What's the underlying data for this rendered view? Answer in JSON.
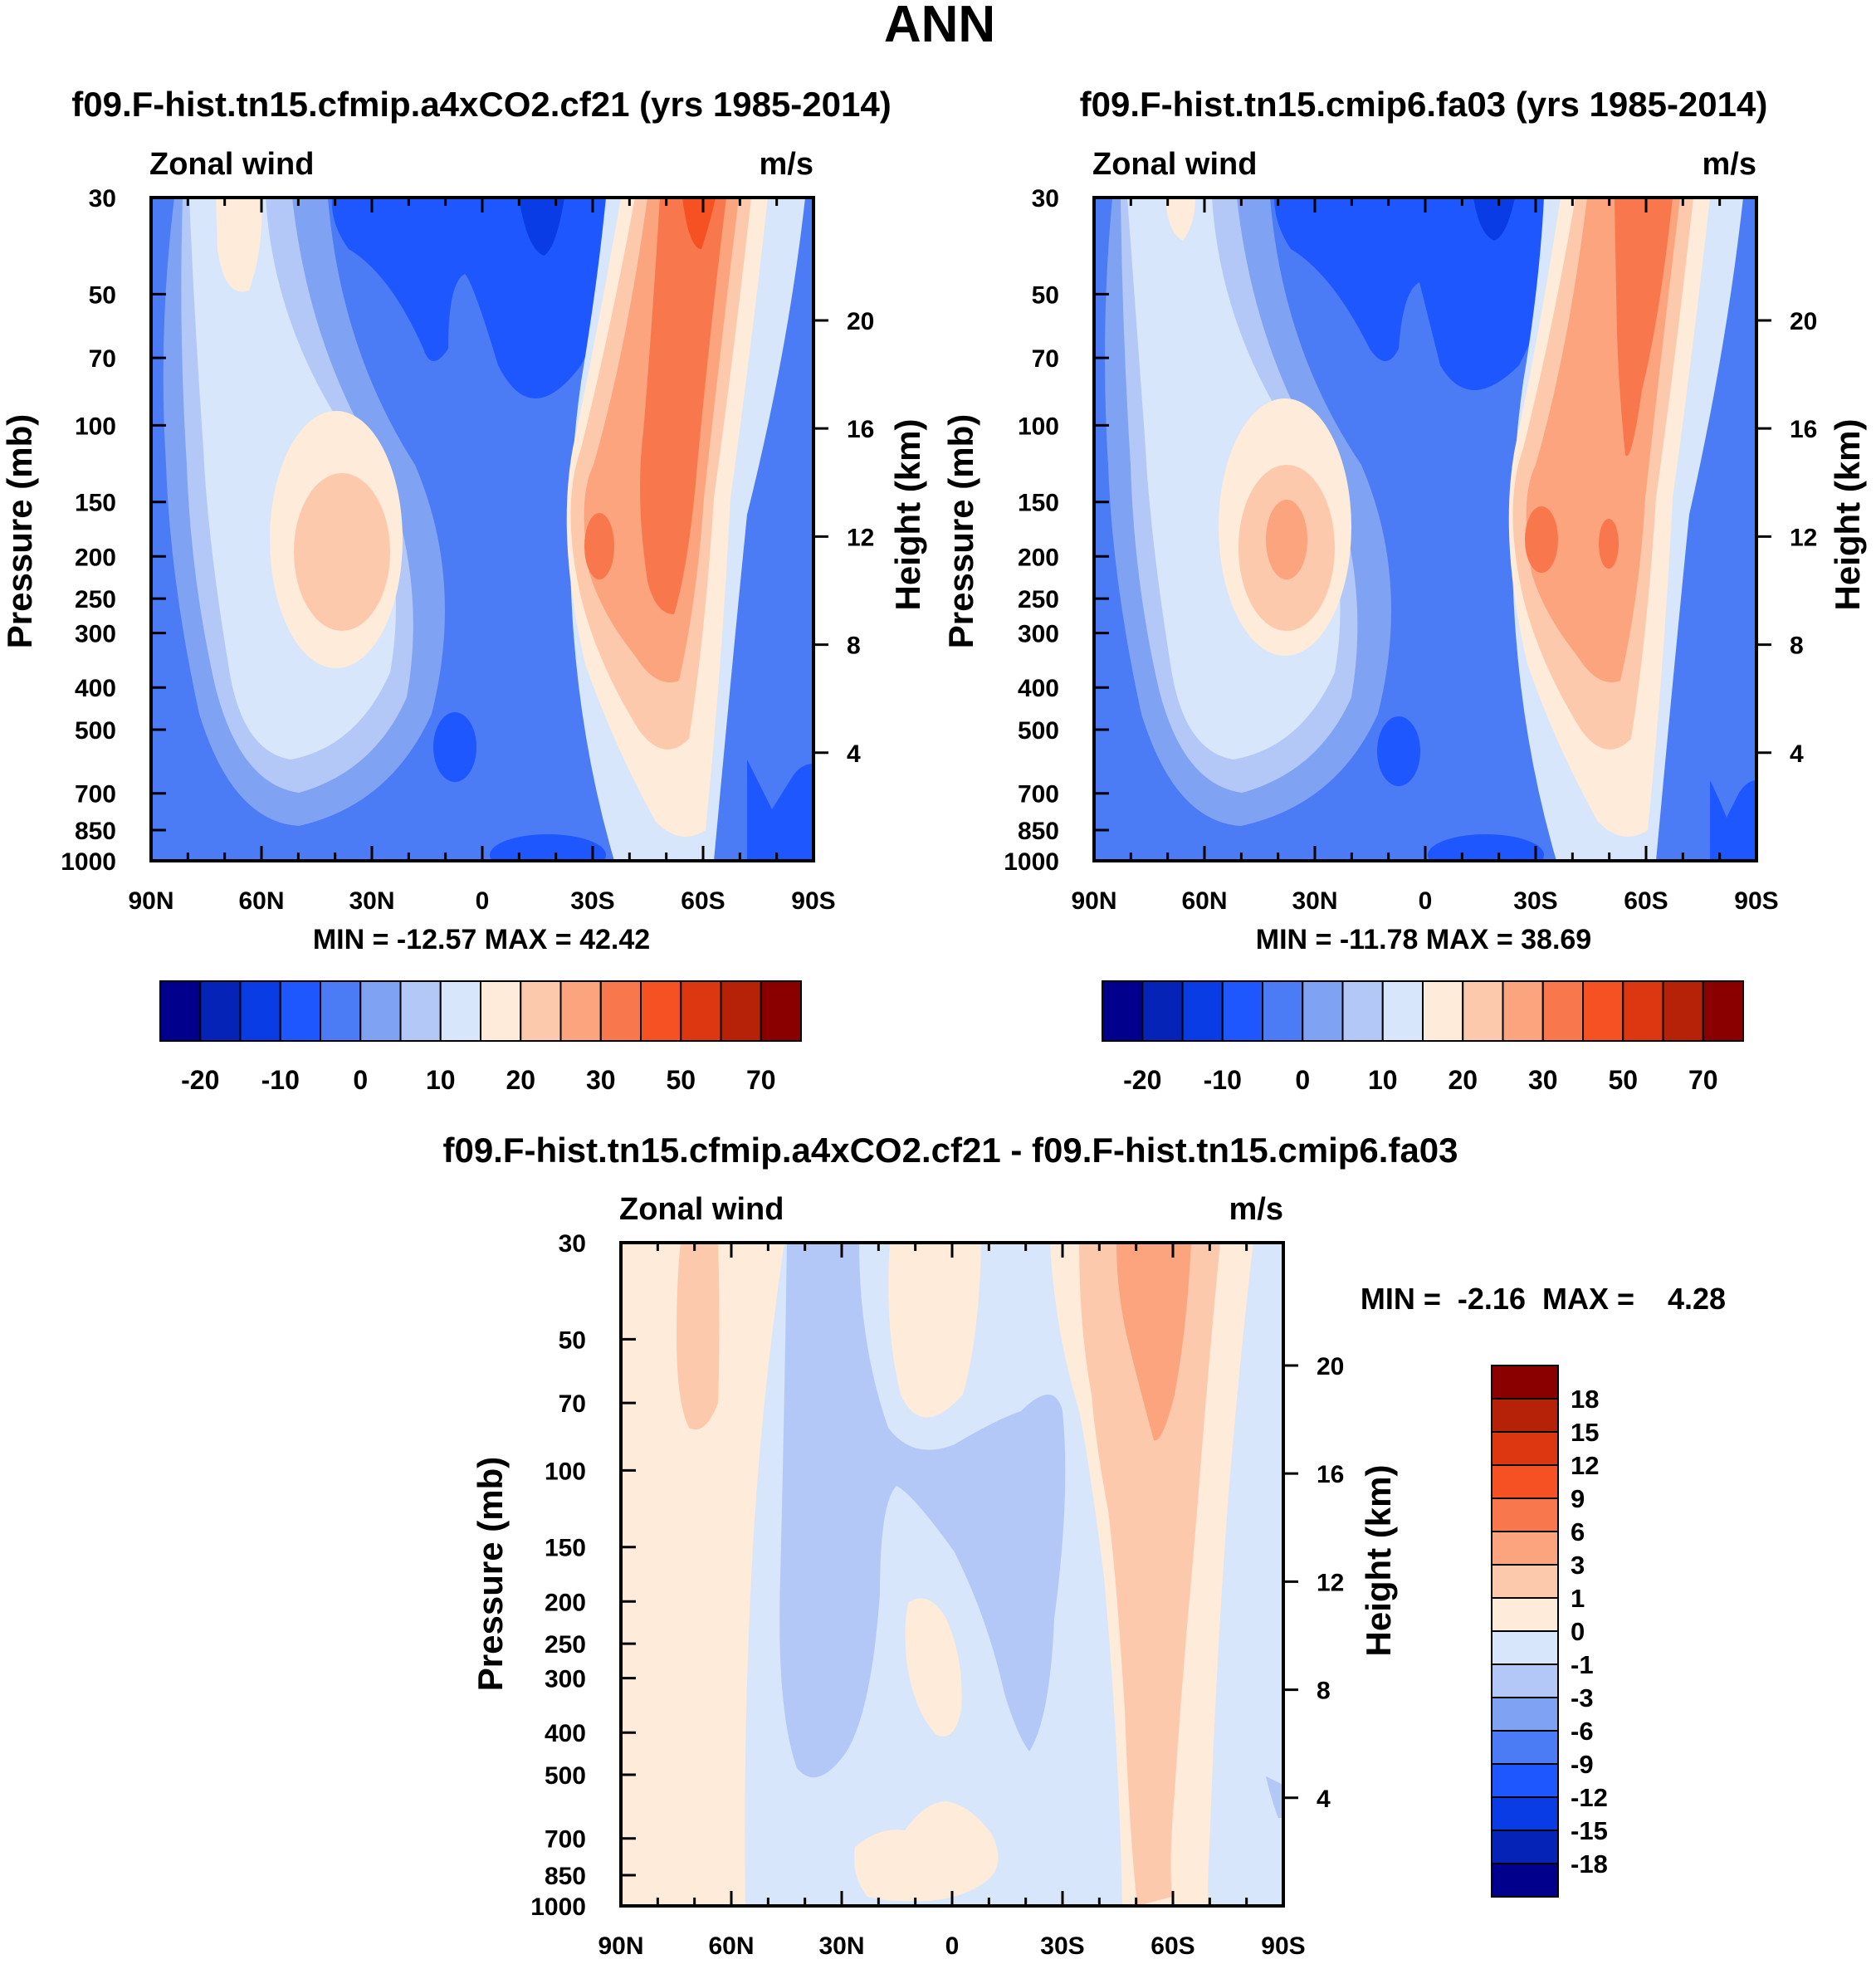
{
  "figure_title": "ANN",
  "chart_data": [
    {
      "type": "contour",
      "id": "panel-a4xco2",
      "title": "f09.F-hist.tn15.cfmip.a4xCO2.cf21 (yrs 1985-2014)",
      "left_label": "Zonal wind",
      "right_label": "m/s",
      "ylabel": "Pressure (mb)",
      "ylabel_right": "Height (km)",
      "x_ticks": [
        "90N",
        "60N",
        "30N",
        "0",
        "30S",
        "60S",
        "90S"
      ],
      "y_ticks": [
        "30",
        "50",
        "70",
        "100",
        "150",
        "200",
        "250",
        "300",
        "400",
        "500",
        "700",
        "850",
        "1000"
      ],
      "height_ticks": [
        "20",
        "16",
        "12",
        "8",
        "4"
      ],
      "stats": "MIN = -12.57  MAX =  42.42",
      "min": -12.57,
      "max": 42.42,
      "colorbar_labels": [
        "-20",
        "-10",
        "0",
        "10",
        "20",
        "30",
        "50",
        "70"
      ]
    },
    {
      "type": "contour",
      "id": "panel-fa03",
      "title": "f09.F-hist.tn15.cmip6.fa03 (yrs 1985-2014)",
      "left_label": "Zonal wind",
      "right_label": "m/s",
      "ylabel": "Pressure (mb)",
      "ylabel_right": "Height (km)",
      "x_ticks": [
        "90N",
        "60N",
        "30N",
        "0",
        "30S",
        "60S",
        "90S"
      ],
      "y_ticks": [
        "30",
        "50",
        "70",
        "100",
        "150",
        "200",
        "250",
        "300",
        "400",
        "500",
        "700",
        "850",
        "1000"
      ],
      "height_ticks": [
        "20",
        "16",
        "12",
        "8",
        "4"
      ],
      "stats": "MIN = -11.78  MAX =  38.69",
      "min": -11.78,
      "max": 38.69,
      "colorbar_labels": [
        "-20",
        "-10",
        "0",
        "10",
        "20",
        "30",
        "50",
        "70"
      ]
    },
    {
      "type": "contour",
      "id": "panel-diff",
      "title": "f09.F-hist.tn15.cfmip.a4xCO2.cf21 - f09.F-hist.tn15.cmip6.fa03",
      "left_label": "Zonal wind",
      "right_label": "m/s",
      "ylabel": "Pressure (mb)",
      "ylabel_right": "Height (km)",
      "x_ticks": [
        "90N",
        "60N",
        "30N",
        "0",
        "30S",
        "60S",
        "90S"
      ],
      "y_ticks": [
        "30",
        "50",
        "70",
        "100",
        "150",
        "200",
        "250",
        "300",
        "400",
        "500",
        "700",
        "850",
        "1000"
      ],
      "height_ticks": [
        "20",
        "16",
        "12",
        "8",
        "4"
      ],
      "stats": "MIN =  -2.16  MAX =    4.28",
      "min": -2.16,
      "max": 4.28,
      "colorbar_labels": [
        "18",
        "15",
        "12",
        "9",
        "6",
        "3",
        "1",
        "0",
        "-1",
        "-3",
        "-6",
        "-9",
        "-12",
        "-15",
        "-18"
      ]
    }
  ],
  "colors": {
    "main_palette": [
      "#00008c",
      "#0623b8",
      "#0a3ce6",
      "#1f57ff",
      "#4b7bf5",
      "#7fa2f2",
      "#b3c8f7",
      "#d7e6fa",
      "#feebd9",
      "#fdc9ad",
      "#fba47d",
      "#f9774d",
      "#f65123",
      "#dc3711",
      "#b52207",
      "#8a0000"
    ],
    "diff_palette": [
      "#8a0000",
      "#b52207",
      "#dc3711",
      "#f65123",
      "#f9774d",
      "#fba47d",
      "#fdc9ad",
      "#feebd9",
      "#d7e6fa",
      "#b3c8f7",
      "#7fa2f2",
      "#4b7bf5",
      "#1f57ff",
      "#0a3ce6",
      "#0623b8",
      "#00008c"
    ]
  }
}
